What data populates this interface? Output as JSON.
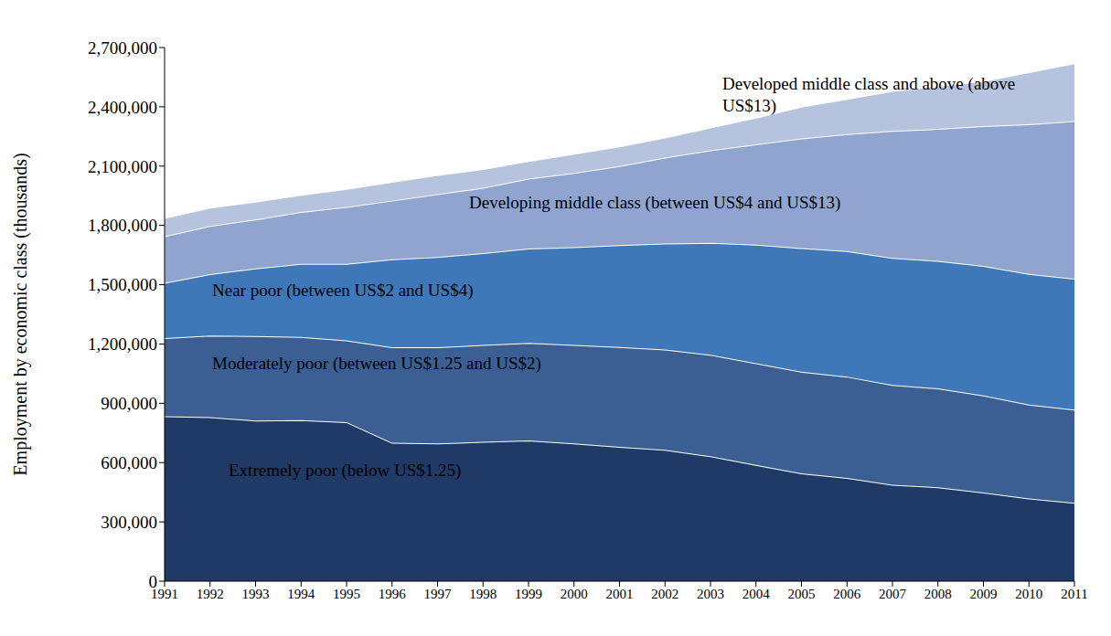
{
  "chart_data": {
    "type": "area",
    "stacked": true,
    "grid": false,
    "y_label": "Employment by economic class (thousands)",
    "categories": [
      "1991",
      "1992",
      "1993",
      "1994",
      "1995",
      "1996",
      "1997",
      "1998",
      "1999",
      "2000",
      "2001",
      "2002",
      "2003",
      "2004",
      "2005",
      "2006",
      "2007",
      "2008",
      "2009",
      "2010",
      "2011"
    ],
    "ylim": [
      0,
      2700000
    ],
    "yticks": [
      0,
      {
        "value": 300000,
        "label": "300,000"
      },
      {
        "value": 600000,
        "label": "600,000"
      },
      {
        "value": 900000,
        "label": "900,000"
      },
      {
        "value": 1200000,
        "label": "1,200,000"
      },
      {
        "value": 1500000,
        "label": "1,500,000"
      },
      {
        "value": 1800000,
        "label": "1,800,000"
      },
      {
        "value": 2100000,
        "label": "2,100,000"
      },
      {
        "value": 2400000,
        "label": "2,400,000"
      },
      {
        "value": 2700000,
        "label": "2,700,000"
      }
    ],
    "series": [
      {
        "name": "Extremely poor (below US$1.25)",
        "color": "#1f3a66",
        "values": [
          835000,
          830000,
          812000,
          815000,
          805000,
          700000,
          697000,
          705000,
          712000,
          697000,
          680000,
          665000,
          632000,
          588000,
          545000,
          522000,
          488000,
          475000,
          448000,
          418000,
          397000
        ]
      },
      {
        "name": "Moderately poor (between US$1.25 and US$2)",
        "color": "#3b5f93",
        "values": [
          395000,
          413000,
          428000,
          420000,
          413000,
          483000,
          486000,
          490000,
          493000,
          498000,
          505000,
          507000,
          513000,
          515000,
          515000,
          513000,
          505000,
          500000,
          492000,
          475000,
          471000
        ]
      },
      {
        "name": "Near poor (between US$2 and US$4)",
        "color": "#3f78b8",
        "values": [
          280000,
          310000,
          342000,
          370000,
          387000,
          445000,
          457000,
          465000,
          478000,
          495000,
          515000,
          536000,
          567000,
          600000,
          625000,
          635000,
          642000,
          645000,
          655000,
          662000,
          662000
        ]
      },
      {
        "name": "Developing middle class (between US$4 and US$13)",
        "color": "#8fa5cf",
        "values": [
          235000,
          244000,
          248000,
          263000,
          288000,
          297000,
          318000,
          330000,
          354000,
          375000,
          400000,
          435000,
          468000,
          507000,
          555000,
          592000,
          643000,
          668000,
          707000,
          757000,
          798000
        ]
      },
      {
        "name": "Developed middle class and above (above US$13)",
        "color": "#b6c3de",
        "values": [
          93000,
          93000,
          90000,
          87000,
          92000,
          95000,
          97000,
          95000,
          88000,
          97000,
          100000,
          102000,
          115000,
          135000,
          160000,
          178000,
          202000,
          217000,
          228000,
          263000,
          292000
        ]
      }
    ]
  }
}
